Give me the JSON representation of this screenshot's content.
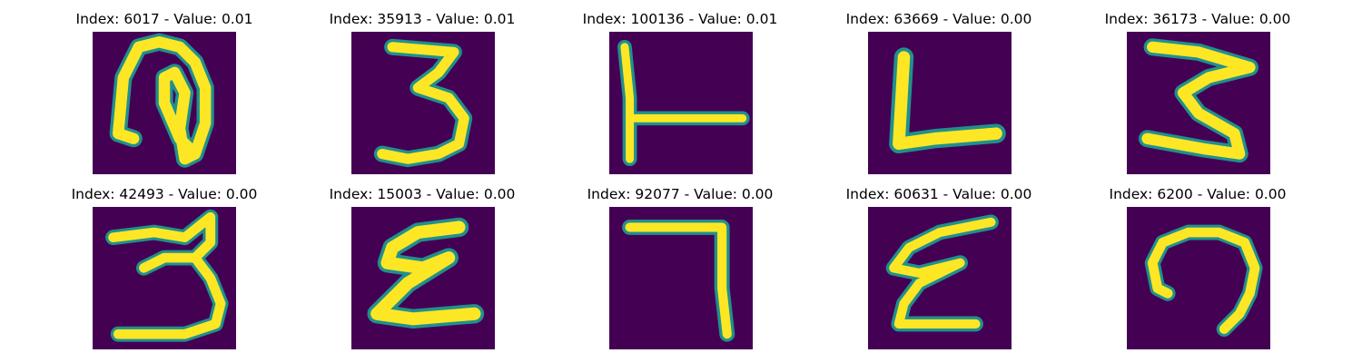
{
  "figure": {
    "background": "#440154",
    "colormap": [
      "#440154",
      "#3b528b",
      "#21908d",
      "#5dc962",
      "#fde725"
    ],
    "panels": [
      {
        "title": "Index: 6017 - Value: 0.01",
        "glyph": "handwritten-n-shape"
      },
      {
        "title": "Index: 35913 - Value: 0.01",
        "glyph": "handwritten-3"
      },
      {
        "title": "Index: 100136 - Value: 0.01",
        "glyph": "handwritten-L-with-bar"
      },
      {
        "title": "Index: 63669 - Value: 0.00",
        "glyph": "handwritten-L"
      },
      {
        "title": "Index: 36173 - Value: 0.00",
        "glyph": "handwritten-3"
      },
      {
        "title": "Index: 42493 - Value: 0.00",
        "glyph": "handwritten-3"
      },
      {
        "title": "Index: 15003 - Value: 0.00",
        "glyph": "handwritten-epsilon"
      },
      {
        "title": "Index: 92077 - Value: 0.00",
        "glyph": "handwritten-7"
      },
      {
        "title": "Index: 60631 - Value: 0.00",
        "glyph": "handwritten-epsilon"
      },
      {
        "title": "Index: 6200 - Value: 0.00",
        "glyph": "handwritten-hook"
      }
    ]
  }
}
